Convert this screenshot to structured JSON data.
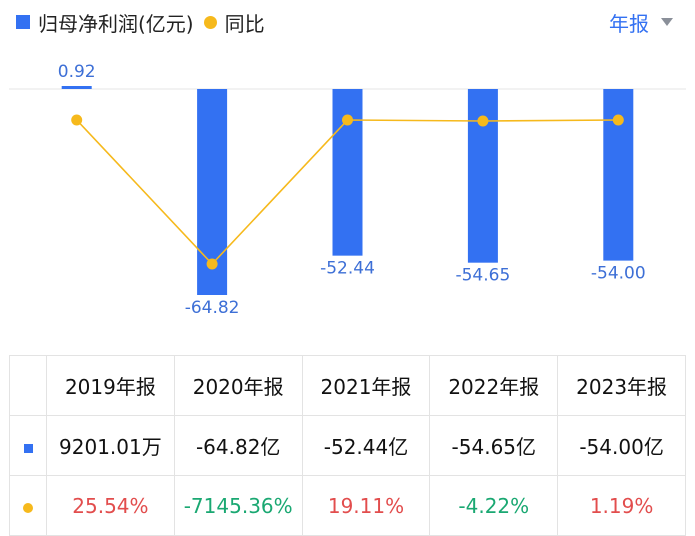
{
  "legend": {
    "bar_label": "归母净利润(亿元)",
    "line_label": "同比"
  },
  "period_selector": {
    "label": "年报"
  },
  "chart_data": {
    "type": "bar",
    "categories": [
      "2019年报",
      "2020年报",
      "2021年报",
      "2022年报",
      "2023年报"
    ],
    "series": [
      {
        "name": "归母净利润(亿元)",
        "type": "bar",
        "values": [
          0.92,
          -64.82,
          -52.44,
          -54.65,
          -54.0
        ],
        "labels": [
          "0.92",
          "-64.82",
          "-52.44",
          "-54.65",
          "-54.00"
        ]
      },
      {
        "name": "同比",
        "type": "line",
        "values": [
          25.54,
          -7145.36,
          19.11,
          -4.22,
          1.19
        ]
      }
    ],
    "colors": {
      "bar": "#3371f2",
      "line": "#f6b91c",
      "positive": "#e24d4d",
      "negative": "#1aa872"
    }
  },
  "table": {
    "headers": [
      "2019年报",
      "2020年报",
      "2021年报",
      "2022年报",
      "2023年报"
    ],
    "profit_row": [
      "9201.01万",
      "-64.82亿",
      "-52.44亿",
      "-54.65亿",
      "-54.00亿"
    ],
    "yoy_row": [
      "25.54%",
      "-7145.36%",
      "19.11%",
      "-4.22%",
      "1.19%"
    ]
  }
}
